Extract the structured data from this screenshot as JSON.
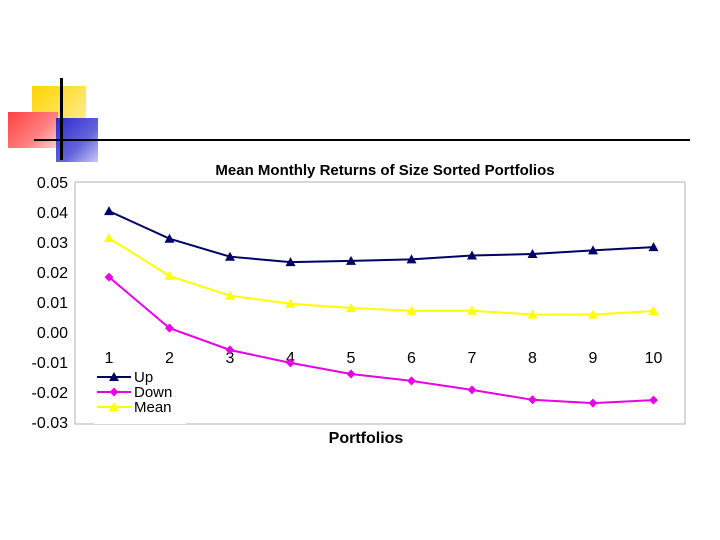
{
  "chart_data": {
    "type": "line",
    "title": "Mean Monthly Returns of Size Sorted Portfolios",
    "xlabel": "Portfolios",
    "ylabel": "",
    "categories": [
      "1",
      "2",
      "3",
      "4",
      "5",
      "6",
      "7",
      "8",
      "9",
      "10"
    ],
    "ylim": [
      -0.03,
      0.05
    ],
    "yticks": [
      "0.05",
      "0.04",
      "0.03",
      "0.02",
      "0.01",
      "0.00",
      "-0.01",
      "-0.02",
      "-0.03"
    ],
    "legend_position": "bottom-left",
    "grid": false,
    "series": [
      {
        "name": "Up",
        "color": "#000066",
        "marker": "triangle",
        "values": [
          0.0403,
          0.0311,
          0.0251,
          0.0233,
          0.0237,
          0.0242,
          0.0255,
          0.026,
          0.0272,
          0.0283
        ]
      },
      {
        "name": "Down",
        "color": "#e600e6",
        "marker": "diamond",
        "values": [
          0.0183,
          0.0013,
          -0.006,
          -0.0103,
          -0.014,
          -0.0163,
          -0.0193,
          -0.0226,
          -0.0237,
          -0.0227
        ]
      },
      {
        "name": "Mean",
        "color": "#ffff00",
        "marker": "triangle",
        "values": [
          0.0313,
          0.0187,
          0.0121,
          0.0094,
          0.008,
          0.0071,
          0.0071,
          0.0058,
          0.0058,
          0.007
        ]
      }
    ]
  },
  "decor": {
    "yellow": "#ffcc00",
    "red": "#ff3333",
    "blue": "#3333cc",
    "rule": "#000000"
  }
}
